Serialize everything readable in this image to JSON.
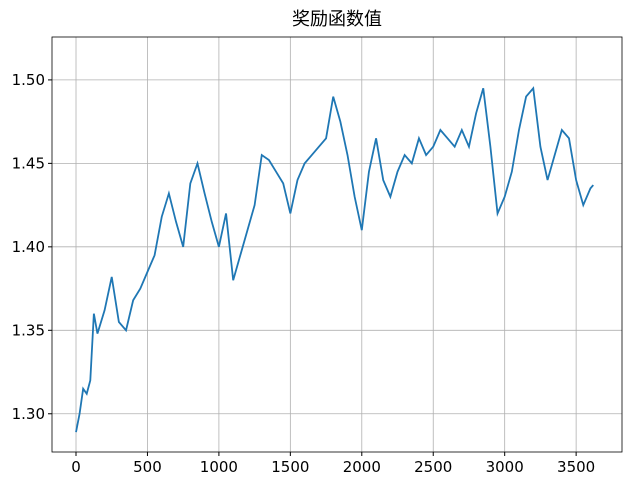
{
  "chart_data": {
    "type": "line",
    "title": "奖励函数值",
    "x": [
      0,
      25,
      50,
      75,
      100,
      125,
      150,
      200,
      250,
      300,
      350,
      400,
      450,
      500,
      550,
      600,
      650,
      700,
      750,
      800,
      850,
      900,
      950,
      1000,
      1050,
      1100,
      1150,
      1200,
      1250,
      1300,
      1350,
      1400,
      1450,
      1500,
      1550,
      1600,
      1650,
      1700,
      1750,
      1800,
      1850,
      1900,
      1950,
      2000,
      2050,
      2100,
      2150,
      2200,
      2250,
      2300,
      2350,
      2400,
      2450,
      2500,
      2550,
      2600,
      2650,
      2700,
      2750,
      2800,
      2850,
      2900,
      2950,
      3000,
      3050,
      3100,
      3150,
      3200,
      3250,
      3300,
      3350,
      3400,
      3450,
      3500,
      3550,
      3600,
      3620
    ],
    "series": [
      {
        "color": "#1f77b4",
        "values": [
          1.289,
          1.3,
          1.315,
          1.312,
          1.32,
          1.36,
          1.348,
          1.362,
          1.382,
          1.355,
          1.35,
          1.368,
          1.375,
          1.385,
          1.395,
          1.418,
          1.432,
          1.415,
          1.4,
          1.438,
          1.45,
          1.432,
          1.415,
          1.4,
          1.42,
          1.38,
          1.395,
          1.41,
          1.425,
          1.455,
          1.452,
          1.445,
          1.438,
          1.42,
          1.44,
          1.45,
          1.455,
          1.46,
          1.465,
          1.49,
          1.475,
          1.455,
          1.43,
          1.41,
          1.445,
          1.465,
          1.44,
          1.43,
          1.445,
          1.455,
          1.45,
          1.465,
          1.455,
          1.46,
          1.47,
          1.465,
          1.46,
          1.47,
          1.46,
          1.48,
          1.495,
          1.46,
          1.42,
          1.43,
          1.445,
          1.47,
          1.49,
          1.495,
          1.46,
          1.44,
          1.455,
          1.47,
          1.465,
          1.44,
          1.425,
          1.435,
          1.437
        ]
      }
    ],
    "xlim": [
      -168,
      3821
    ],
    "xticks": [
      0,
      500,
      1000,
      1500,
      2000,
      2500,
      3000,
      3500
    ],
    "ylim": [
      1.2771,
      1.5257
    ],
    "yticks": [
      {
        "value": 1.3,
        "label": "1.30"
      },
      {
        "value": 1.35,
        "label": "1.35"
      },
      {
        "value": 1.4,
        "label": "1.40"
      },
      {
        "value": 1.45,
        "label": "1.45"
      },
      {
        "value": 1.5,
        "label": "1.50"
      }
    ],
    "grid": true
  }
}
